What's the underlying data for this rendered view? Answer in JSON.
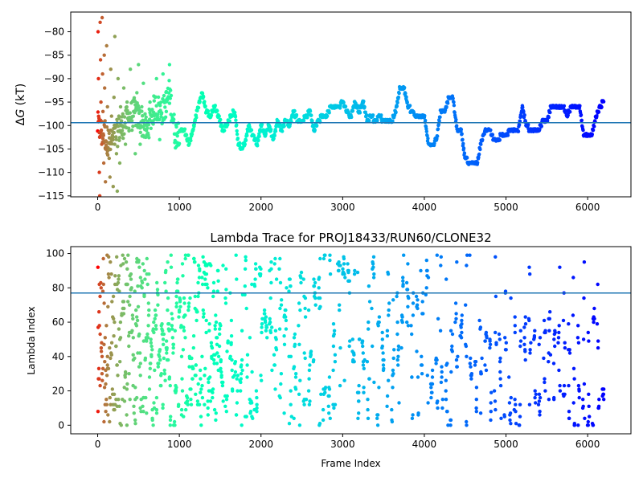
{
  "figure": {
    "colormap": "rainbow",
    "colormap_direction": "frame index early = red, late = violet",
    "reference_line_color": "#1f77b4"
  },
  "chart_data": [
    {
      "type": "scatter",
      "panel": "top",
      "title": "",
      "xlabel": "",
      "ylabel_prefix": "Δ",
      "ylabel_var": "G",
      "ylabel_suffix": " (kT)",
      "xlim": [
        -330,
        6530
      ],
      "ylim": [
        -115.2,
        -75.8
      ],
      "xticks": [
        0,
        1000,
        2000,
        3000,
        4000,
        5000,
        6000
      ],
      "yticks": [
        -115,
        -110,
        -105,
        -100,
        -95,
        -90,
        -85,
        -80
      ],
      "reference_line_y": -99.4,
      "grid": false,
      "frame_count": 6200,
      "free_energy_trace_waypoints": {
        "x": [
          0,
          150,
          300,
          450,
          600,
          700,
          800,
          880,
          950,
          1000,
          1060,
          1120,
          1180,
          1230,
          1280,
          1330,
          1380,
          1430,
          1480,
          1530,
          1580,
          1630,
          1680,
          1720,
          1760,
          1800,
          1850,
          1900,
          1950,
          2000,
          2050,
          2100,
          2150,
          2200,
          2250,
          2300,
          2350,
          2400,
          2450,
          2500,
          2550,
          2600,
          2650,
          2700,
          2750,
          2800,
          2850,
          2900,
          2950,
          3000,
          3050,
          3100,
          3150,
          3200,
          3250,
          3300,
          3350,
          3400,
          3450,
          3500,
          3550,
          3600,
          3650,
          3700,
          3750,
          3800,
          3850,
          3900,
          3950,
          4000,
          4050,
          4100,
          4150,
          4200,
          4250,
          4300,
          4350,
          4400,
          4450,
          4500,
          4550,
          4600,
          4650,
          4700,
          4750,
          4800,
          4850,
          4900,
          4950,
          5000,
          5050,
          5100,
          5150,
          5200,
          5250,
          5300,
          5350,
          5400,
          5450,
          5500,
          5550,
          5600,
          5650,
          5700,
          5750,
          5800,
          5850,
          5900,
          5950,
          6000,
          6050,
          6100,
          6150,
          6200
        ],
        "y": [
          -100,
          -104,
          -100,
          -97,
          -101,
          -96,
          -97,
          -93,
          -102,
          -101,
          -101,
          -104,
          -100,
          -96,
          -93,
          -97,
          -98,
          -96,
          -98,
          -101,
          -100,
          -98,
          -97,
          -104,
          -105,
          -104,
          -100,
          -102,
          -104,
          -100,
          -102,
          -100,
          -103,
          -99,
          -101,
          -99,
          -100,
          -97,
          -99,
          -99,
          -98,
          -97,
          -101,
          -99,
          -98,
          -98,
          -96,
          -96,
          -96,
          -95,
          -97,
          -98,
          -95,
          -97,
          -95,
          -99,
          -98,
          -99,
          -98,
          -99,
          -99,
          -99,
          -97,
          -92,
          -92,
          -96,
          -97,
          -98,
          -98,
          -98,
          -104,
          -104,
          -103,
          -97,
          -97,
          -94,
          -94,
          -101,
          -101,
          -107,
          -108,
          -108,
          -108,
          -103,
          -101,
          -101,
          -103,
          -103,
          -102,
          -102,
          -101,
          -101,
          -101,
          -96,
          -100,
          -101,
          -101,
          -101,
          -99,
          -99,
          -96,
          -96,
          -96,
          -96,
          -98,
          -96,
          -96,
          -96,
          -102,
          -102,
          -102,
          -98,
          -96,
          -95
        ]
      },
      "early_spread_points": {
        "x": [
          5,
          10,
          15,
          20,
          25,
          30,
          35,
          40,
          45,
          50,
          55,
          60,
          65,
          70,
          75,
          80,
          85,
          90,
          95,
          100,
          110,
          120,
          130,
          140,
          150,
          160,
          170,
          180,
          190,
          200,
          210,
          220,
          230,
          240,
          250,
          260,
          270,
          280,
          300,
          320,
          340,
          360,
          380,
          400,
          420,
          440,
          460,
          480,
          500,
          520,
          540,
          560,
          600,
          640,
          680,
          720,
          760,
          800,
          840,
          880
        ],
        "y": [
          -80,
          -90,
          -99,
          -110,
          -115,
          -78,
          -86,
          -95,
          -101,
          -104,
          -77,
          -89,
          -97,
          -102,
          -108,
          -85,
          -92,
          -99,
          -112,
          -105,
          -83,
          -96,
          -101,
          -107,
          -111,
          -88,
          -98,
          -103,
          -113,
          -94,
          -81,
          -100,
          -106,
          -114,
          -90,
          -98,
          -108,
          -96,
          -102,
          -92,
          -104,
          -95,
          -99,
          -88,
          -101,
          -97,
          -106,
          -93,
          -87,
          -104,
          -96,
          -91,
          -102,
          -95,
          -99,
          -90,
          -103,
          -89,
          -97,
          -87
        ]
      }
    },
    {
      "type": "scatter",
      "panel": "bottom",
      "title": "Lambda Trace for PROJ18433/RUN60/CLONE32",
      "xlabel": "Frame Index",
      "ylabel": "Lambda Index",
      "xlim": [
        -330,
        6530
      ],
      "ylim": [
        -5,
        104
      ],
      "xticks": [
        0,
        1000,
        2000,
        3000,
        4000,
        5000,
        6000
      ],
      "yticks": [
        0,
        20,
        40,
        60,
        80,
        100
      ],
      "reference_line_y": 77,
      "grid": false,
      "frame_count": 6200,
      "lambda_range": [
        0,
        99
      ],
      "sampling": "frames visit every lambda index 0-99; density thins with frame index while clustering into vertical stripes"
    }
  ]
}
